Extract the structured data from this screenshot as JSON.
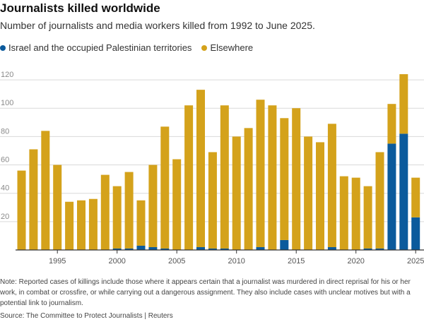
{
  "colors": {
    "israel": "#0b5a9c",
    "elsewhere": "#d4a21b",
    "grid": "#d9d9d9",
    "axis": "#333333",
    "tick": "#8a8a8a"
  },
  "chart_data": {
    "type": "bar",
    "stacked": true,
    "title": "Journalists killed worldwide",
    "subtitle": "Number of journalists and media workers killed from 1992 to June 2025.",
    "categories": [
      1992,
      1993,
      1994,
      1995,
      1996,
      1997,
      1998,
      1999,
      2000,
      2001,
      2002,
      2003,
      2004,
      2005,
      2006,
      2007,
      2008,
      2009,
      2010,
      2011,
      2012,
      2013,
      2014,
      2015,
      2016,
      2017,
      2018,
      2019,
      2020,
      2021,
      2022,
      2023,
      2024,
      2025
    ],
    "series": [
      {
        "name": "Israel and the occupied Palestinian territories",
        "color_key": "israel",
        "values": [
          0,
          0,
          0,
          0,
          0,
          0,
          0,
          0,
          1,
          1,
          3,
          2,
          1,
          0,
          0,
          2,
          1,
          1,
          0,
          0,
          2,
          0,
          7,
          0,
          0,
          0,
          2,
          0,
          0,
          1,
          1,
          75,
          82,
          23
        ]
      },
      {
        "name": "Elsewhere",
        "color_key": "elsewhere",
        "values": [
          56,
          71,
          84,
          60,
          34,
          35,
          36,
          53,
          44,
          54,
          32,
          58,
          86,
          64,
          102,
          111,
          68,
          101,
          80,
          86,
          104,
          102,
          86,
          100,
          80,
          76,
          87,
          52,
          51,
          44,
          68,
          28,
          42,
          28
        ]
      }
    ],
    "y_ticks": [
      20,
      40,
      60,
      80,
      100,
      120
    ],
    "x_tick_labels": [
      "1995",
      "2000",
      "2005",
      "2010",
      "2015",
      "2020",
      "2025"
    ],
    "x_tick_years": [
      1995,
      2000,
      2005,
      2010,
      2015,
      2020,
      2025
    ],
    "ylim": [
      0,
      130
    ],
    "xlabel": "",
    "ylabel": ""
  },
  "note": "Note: Reported cases of killings include those where it appears certain that a journalist was murdered in direct reprisal for his or her work, in combat or crossfire, or while carrying out a dangerous assignment. They also include cases with unclear motives but with a potential link to journalism.",
  "source": "Source: The Committee to Protect Journalists | Reuters"
}
